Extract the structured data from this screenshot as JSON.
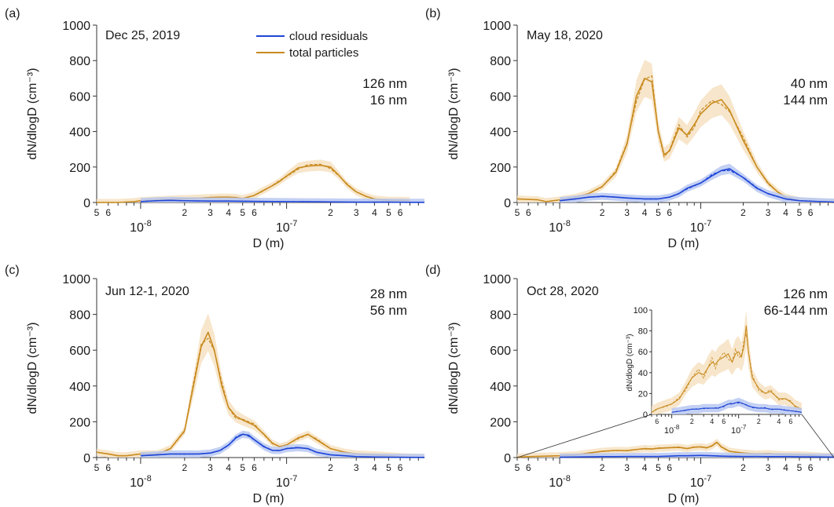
{
  "colors": {
    "residual": "#1f45d6",
    "residual_band": "#b9c8f2",
    "total": "#c88a1e",
    "total_band": "#f6e2c2",
    "residual_label": "#5a7ee0",
    "axis": "#333333"
  },
  "legend": {
    "residual_label": "cloud residuals",
    "total_label": "total particles"
  },
  "chart_data": [
    {
      "panel_label": "(a)",
      "type": "line",
      "title": "Dec 25, 2019",
      "xlabel": "D (m)",
      "ylabel": "dN/dlogD (cm⁻³)",
      "x_scale": "log",
      "xlim": [
        5e-09,
        8.8e-07
      ],
      "ylim": [
        0,
        1000
      ],
      "yticks": [
        0,
        200,
        400,
        600,
        800,
        1000
      ],
      "size_total": "126 nm",
      "size_residual": "16 nm",
      "series": [
        {
          "name": "total particles",
          "x": [
            5e-09,
            7e-09,
            9e-09,
            1e-08,
            1.3e-08,
            1.7e-08,
            2e-08,
            2.5e-08,
            3e-08,
            3.5e-08,
            4e-08,
            4.5e-08,
            5e-08,
            6e-08,
            7e-08,
            8e-08,
            9e-08,
            1e-07,
            1.2e-07,
            1.4e-07,
            1.7e-07,
            2e-07,
            2.3e-07,
            2.6e-07,
            3e-07,
            3.5e-07,
            4e-07,
            5e-07,
            6e-07,
            7e-07
          ],
          "y": [
            0,
            0,
            5,
            10,
            15,
            20,
            22,
            25,
            28,
            30,
            30,
            28,
            22,
            40,
            70,
            95,
            120,
            150,
            195,
            205,
            210,
            200,
            150,
            100,
            60,
            35,
            20,
            12,
            12,
            10
          ]
        },
        {
          "name": "cloud residuals",
          "x": [
            1e-08,
            1.3e-08,
            1.6e-08,
            2e-08,
            3e-08,
            4e-08,
            5e-08,
            7e-08,
            1e-07,
            1.5e-07,
            2e-07,
            3e-07,
            5e-07,
            7e-07,
            8.8e-07
          ],
          "y": [
            5,
            10,
            12,
            10,
            8,
            8,
            7,
            6,
            5,
            4,
            3,
            2,
            2,
            1,
            1
          ]
        }
      ]
    },
    {
      "panel_label": "(b)",
      "type": "line",
      "title": "May 18, 2020",
      "xlabel": "D (m)",
      "ylabel": "dN/dlogD (cm⁻³)",
      "x_scale": "log",
      "xlim": [
        5e-09,
        8.8e-07
      ],
      "ylim": [
        0,
        1000
      ],
      "yticks": [
        0,
        200,
        400,
        600,
        800,
        1000
      ],
      "size_total": "40 nm",
      "size_residual": "144 nm",
      "series": [
        {
          "name": "total particles",
          "x": [
            5e-09,
            7e-09,
            8e-09,
            9e-09,
            1e-08,
            1.3e-08,
            1.6e-08,
            2e-08,
            2.5e-08,
            3e-08,
            3.5e-08,
            4e-08,
            4.5e-08,
            5e-08,
            5.5e-08,
            6e-08,
            7e-08,
            8e-08,
            9e-08,
            1e-07,
            1.2e-07,
            1.4e-07,
            1.6e-07,
            2e-07,
            2.5e-07,
            3e-07,
            3.5e-07,
            4e-07,
            5e-07,
            6e-07,
            8.8e-07
          ],
          "y": [
            20,
            15,
            5,
            10,
            15,
            30,
            50,
            90,
            170,
            330,
            600,
            700,
            680,
            400,
            270,
            290,
            420,
            380,
            440,
            500,
            560,
            580,
            520,
            350,
            200,
            110,
            60,
            30,
            10,
            5,
            0
          ]
        },
        {
          "name": "cloud residuals",
          "x": [
            1e-08,
            1.3e-08,
            1.6e-08,
            2e-08,
            2.5e-08,
            3e-08,
            4e-08,
            5e-08,
            6e-08,
            7e-08,
            8e-08,
            1e-07,
            1.2e-07,
            1.4e-07,
            1.6e-07,
            2e-07,
            2.5e-07,
            3e-07,
            4e-07,
            5e-07,
            7e-07,
            8.8e-07
          ],
          "y": [
            10,
            20,
            30,
            35,
            30,
            25,
            20,
            20,
            30,
            50,
            80,
            110,
            150,
            180,
            190,
            140,
            80,
            50,
            20,
            10,
            5,
            2
          ]
        }
      ]
    },
    {
      "panel_label": "(c)",
      "type": "line",
      "title": "Jun 12-1, 2020",
      "xlabel": "D (m)",
      "ylabel": "dN/dlogD (cm⁻³)",
      "x_scale": "log",
      "xlim": [
        5e-09,
        8.8e-07
      ],
      "ylim": [
        0,
        1000
      ],
      "yticks": [
        0,
        200,
        400,
        600,
        800,
        1000
      ],
      "size_total": "28 nm",
      "size_residual": "56 nm",
      "series": [
        {
          "name": "total particles",
          "x": [
            5e-09,
            6e-09,
            7e-09,
            8e-09,
            1e-08,
            1.3e-08,
            1.6e-08,
            2e-08,
            2.3e-08,
            2.6e-08,
            2.9e-08,
            3.2e-08,
            3.6e-08,
            4e-08,
            4.5e-08,
            5e-08,
            6e-08,
            7e-08,
            8e-08,
            9e-08,
            1e-07,
            1.2e-07,
            1.4e-07,
            1.6e-07,
            2e-07,
            2.5e-07,
            3e-07,
            4e-07,
            5e-07,
            6e-07,
            8.8e-07
          ],
          "y": [
            30,
            20,
            10,
            10,
            20,
            20,
            50,
            150,
            400,
            620,
            700,
            600,
            400,
            280,
            230,
            210,
            180,
            130,
            80,
            60,
            70,
            110,
            130,
            100,
            50,
            30,
            20,
            15,
            10,
            5,
            0
          ]
        },
        {
          "name": "cloud residuals",
          "x": [
            1e-08,
            1.3e-08,
            1.6e-08,
            2e-08,
            2.5e-08,
            3e-08,
            3.5e-08,
            4e-08,
            4.5e-08,
            5e-08,
            5.5e-08,
            6e-08,
            7e-08,
            8e-08,
            9e-08,
            1e-07,
            1.2e-07,
            1.4e-07,
            1.6e-07,
            2e-07,
            2.5e-07,
            3e-07,
            4e-07,
            5e-07,
            7e-07,
            8.8e-07
          ],
          "y": [
            10,
            15,
            20,
            20,
            20,
            25,
            40,
            70,
            110,
            130,
            125,
            100,
            60,
            40,
            40,
            50,
            55,
            50,
            30,
            15,
            10,
            5,
            3,
            2,
            1,
            1
          ]
        }
      ]
    },
    {
      "panel_label": "(d)",
      "type": "line",
      "title": "Oct 28, 2020",
      "xlabel": "D (m)",
      "ylabel": "dN/dlogD (cm⁻³)",
      "x_scale": "log",
      "xlim": [
        5e-09,
        8.8e-07
      ],
      "ylim": [
        0,
        1000
      ],
      "yticks": [
        0,
        200,
        400,
        600,
        800,
        1000
      ],
      "size_total": "126 nm",
      "size_residual": "66-144 nm",
      "inset": {
        "ylabel": "dN/dlogD (cm⁻³)",
        "ylim": [
          0,
          100
        ],
        "yticks": [
          0,
          20,
          40,
          60,
          80,
          100
        ]
      },
      "series": [
        {
          "name": "total particles",
          "x": [
            5e-09,
            6e-09,
            8e-09,
            1e-08,
            1.3e-08,
            1.6e-08,
            2e-08,
            2.5e-08,
            3e-08,
            3.5e-08,
            4e-08,
            4.5e-08,
            5e-08,
            6e-08,
            7e-08,
            8e-08,
            9e-08,
            1e-07,
            1.1e-07,
            1.2e-07,
            1.3e-07,
            1.4e-07,
            1.6e-07,
            2e-07,
            2.5e-07,
            3e-07,
            4e-07,
            5e-07,
            6e-07,
            7e-07,
            8.8e-07
          ],
          "y": [
            2,
            5,
            8,
            10,
            15,
            25,
            35,
            40,
            38,
            45,
            50,
            48,
            52,
            55,
            58,
            50,
            58,
            60,
            55,
            65,
            85,
            60,
            35,
            25,
            20,
            22,
            15,
            15,
            12,
            8,
            5
          ]
        },
        {
          "name": "cloud residuals",
          "x": [
            1e-08,
            1.3e-08,
            1.6e-08,
            2e-08,
            2.5e-08,
            3e-08,
            4e-08,
            5e-08,
            6e-08,
            7e-08,
            8e-08,
            1e-07,
            1.2e-07,
            1.4e-07,
            1.6e-07,
            2e-07,
            2.5e-07,
            3e-07,
            4e-07,
            5e-07,
            7e-07,
            8.8e-07
          ],
          "y": [
            2,
            3,
            4,
            5,
            5,
            6,
            6,
            6,
            8,
            10,
            10,
            12,
            10,
            8,
            7,
            6,
            6,
            5,
            5,
            4,
            3,
            2
          ]
        }
      ]
    }
  ]
}
